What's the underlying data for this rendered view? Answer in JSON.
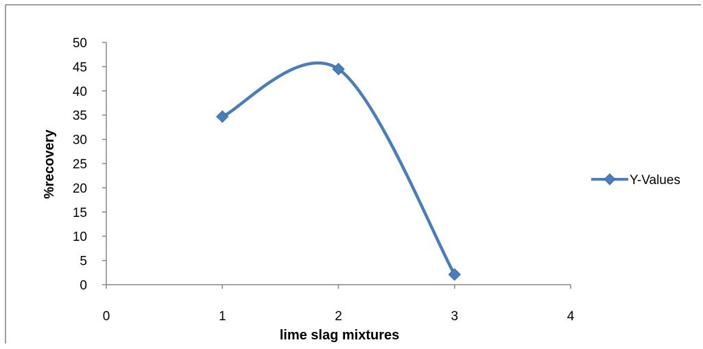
{
  "chart_data": {
    "type": "scatter",
    "style": "smooth-line-with-markers",
    "x": [
      1,
      2,
      3
    ],
    "series": [
      {
        "name": "Y-Values",
        "values": [
          34.7,
          44.5,
          2.1
        ],
        "color": "#4A7EBB",
        "marker": "diamond"
      }
    ],
    "title": "",
    "xlabel": "lime slag mixtures",
    "ylabel": "%recovery",
    "xlim": [
      0,
      4
    ],
    "ylim": [
      0,
      50
    ],
    "xticks": [
      "0",
      "1",
      "2",
      "3",
      "4"
    ],
    "yticks": [
      "0",
      "5",
      "10",
      "15",
      "20",
      "25",
      "30",
      "35",
      "40",
      "45",
      "50"
    ],
    "grid": false,
    "legend": "right"
  }
}
